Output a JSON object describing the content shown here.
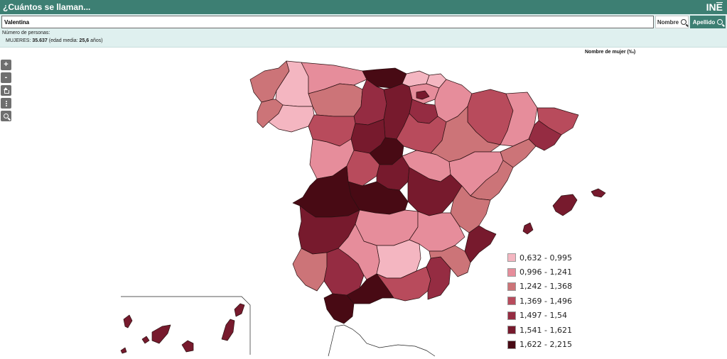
{
  "header": {
    "title": "¿Cuántos se llaman...",
    "logo": "INE"
  },
  "search": {
    "value": "Valentina",
    "nombre_label": "Nombre",
    "apellido_label": "Apellido"
  },
  "summary": {
    "label": "Número de personas:",
    "group": "MUJERES:",
    "count": "35.637",
    "age_prefix": "(edad media:",
    "age_value": "25,6",
    "age_suffix": "años)"
  },
  "map": {
    "title": "Nombre de mujer (‰)",
    "controls": [
      "zoom-in",
      "zoom-out",
      "home",
      "more",
      "search"
    ],
    "legend": [
      {
        "label": "0,632 - 0,995",
        "color": "#f4b6c1"
      },
      {
        "label": "0,996 - 1,241",
        "color": "#e68d9b"
      },
      {
        "label": "1,242 - 1,368",
        "color": "#cc7478"
      },
      {
        "label": "1,369 - 1,496",
        "color": "#b84b5c"
      },
      {
        "label": "1,497 - 1,54",
        "color": "#952c42"
      },
      {
        "label": "1,541 - 1,621",
        "color": "#771a2d"
      },
      {
        "label": "1,622 - 2,215",
        "color": "#480a14"
      }
    ]
  }
}
